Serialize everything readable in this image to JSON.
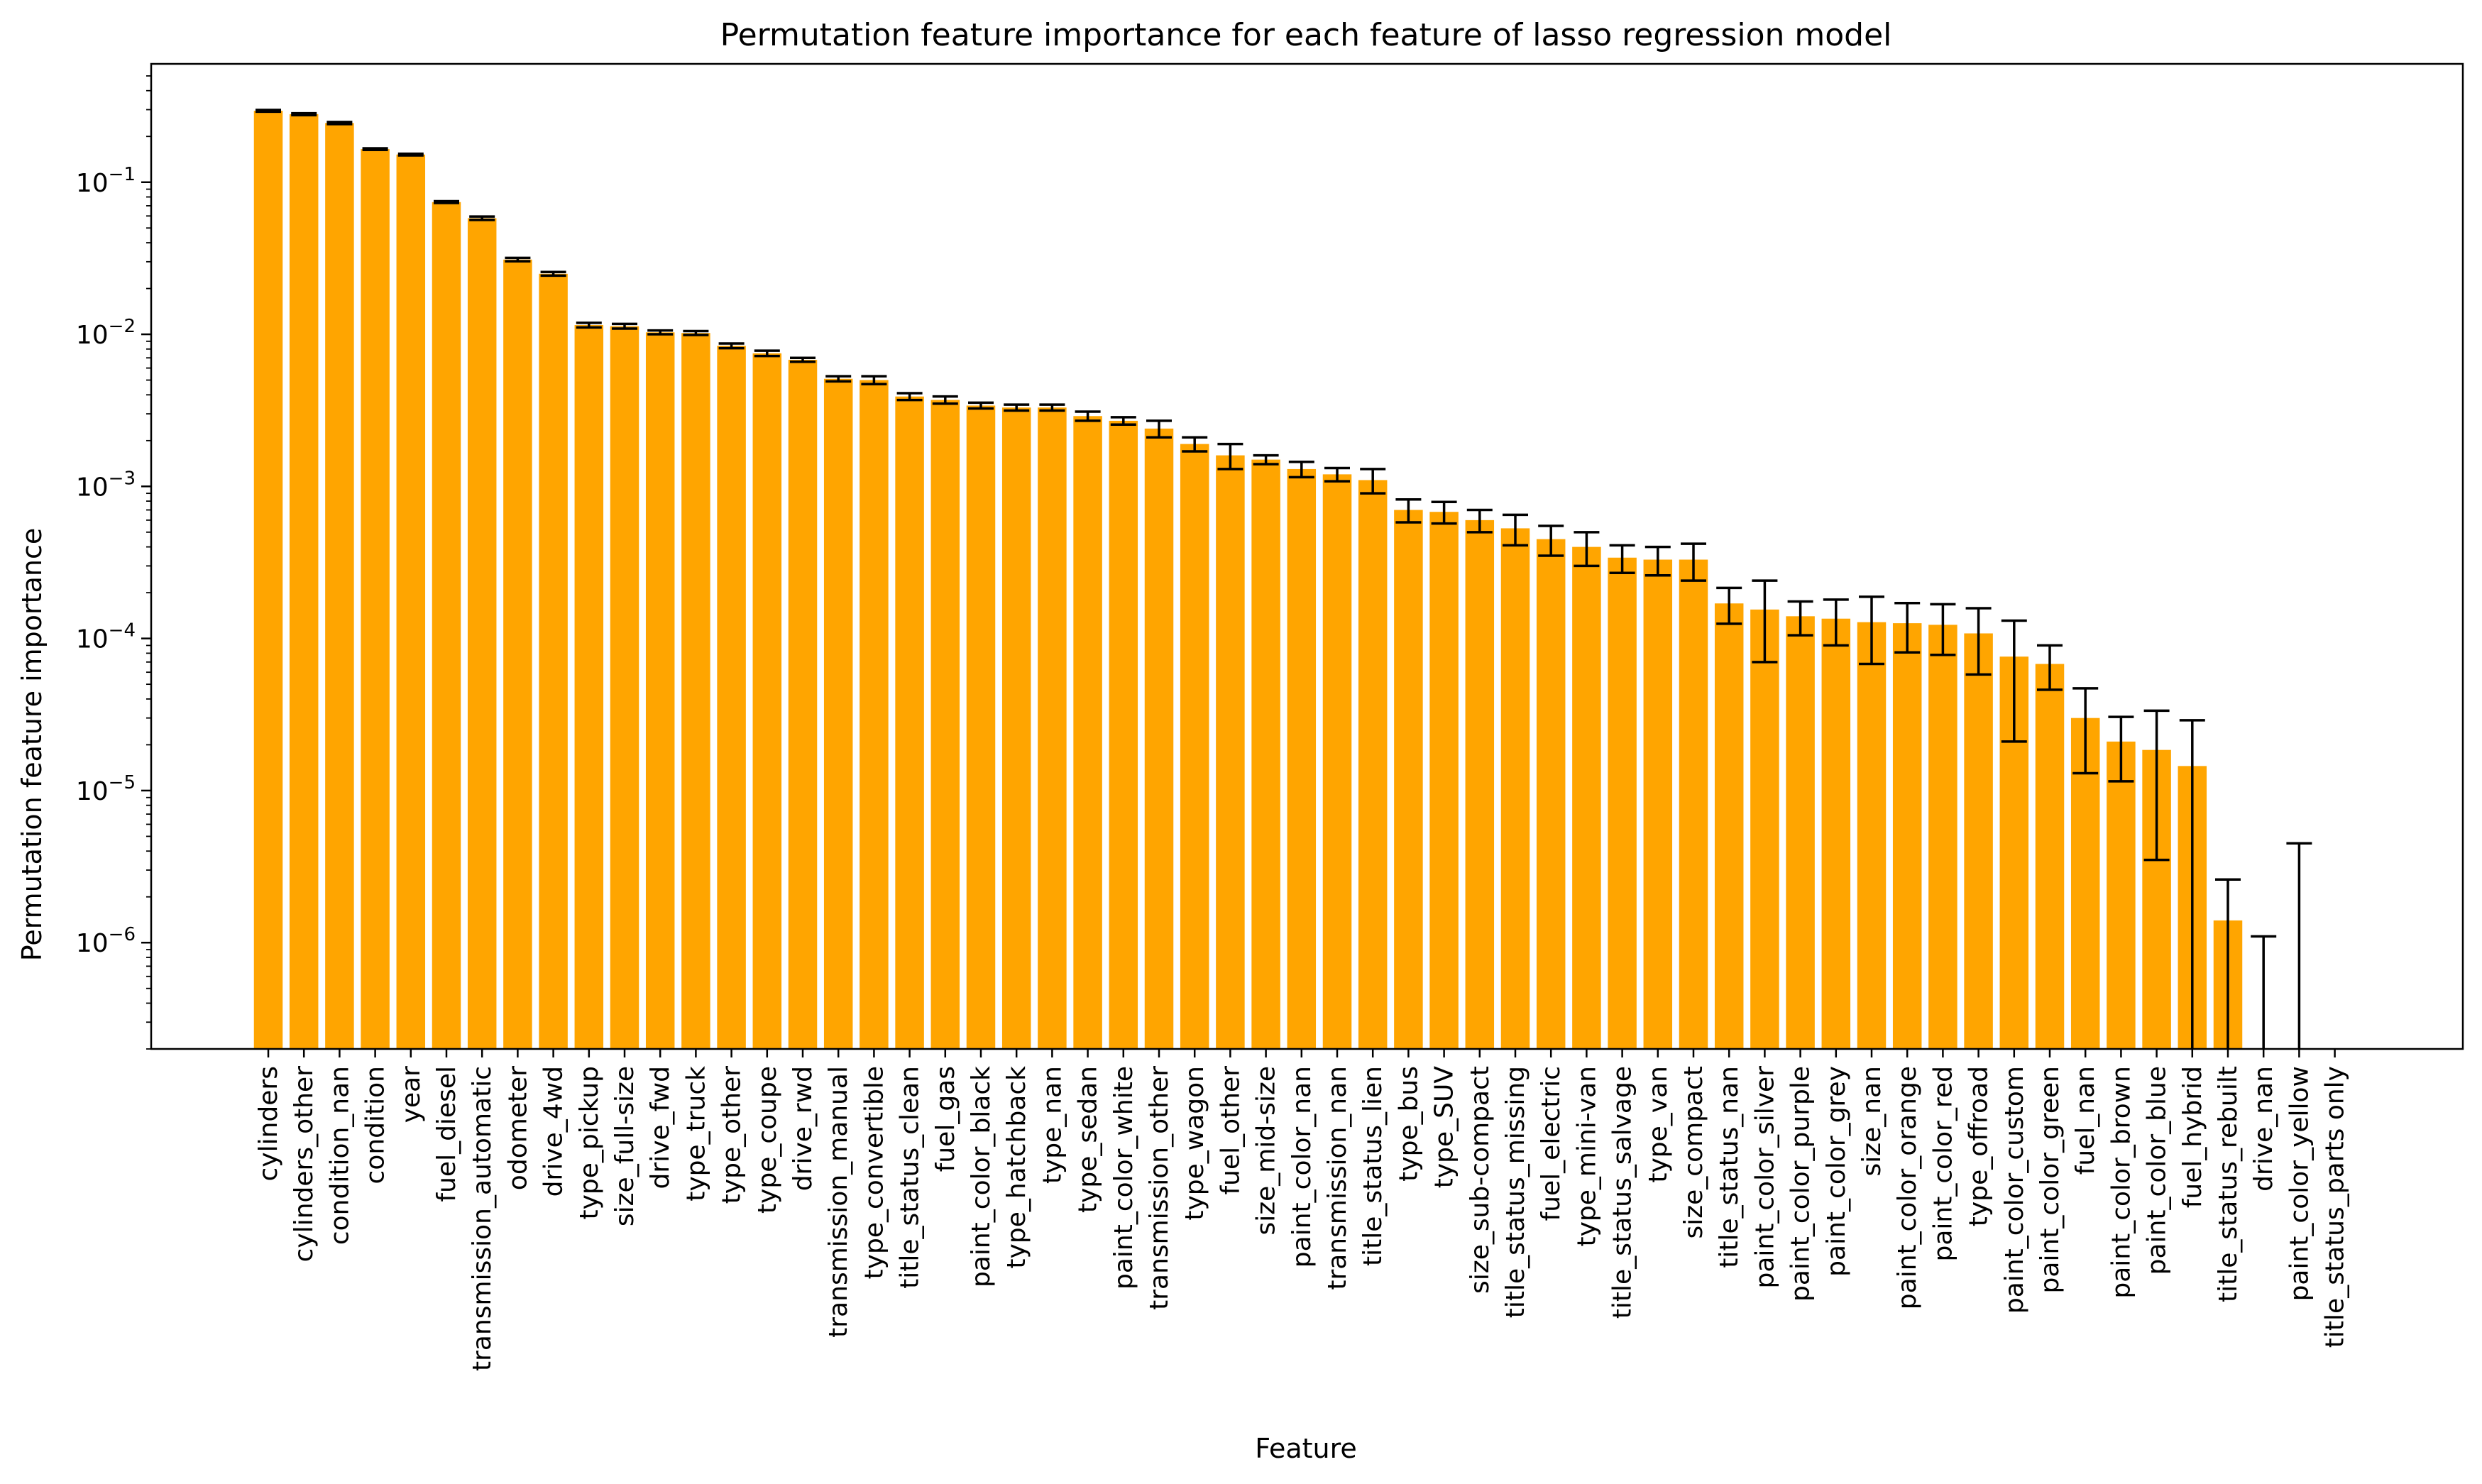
{
  "chart_data": {
    "type": "bar",
    "title": "Permutation feature importance for each feature of lasso regression model",
    "xlabel": "Feature",
    "ylabel": "Permutation feature importance",
    "yscale": "log",
    "ylim": [
      2e-07,
      0.6
    ],
    "y_ticks": [
      {
        "value": 1e-06,
        "base": "10",
        "exp": "−6"
      },
      {
        "value": 1e-05,
        "base": "10",
        "exp": "−5"
      },
      {
        "value": 0.0001,
        "base": "10",
        "exp": "−4"
      },
      {
        "value": 0.001,
        "base": "10",
        "exp": "−3"
      },
      {
        "value": 0.01,
        "base": "10",
        "exp": "−2"
      },
      {
        "value": 0.1,
        "base": "10",
        "exp": "−1"
      }
    ],
    "grid": false,
    "legend": "none",
    "colors": {
      "bar": "#FFA500",
      "error_bar": "#000000",
      "axes": "#000000"
    },
    "categories": [
      "cylinders",
      "cylinders_other",
      "condition_nan",
      "condition",
      "year",
      "fuel_diesel",
      "transmission_automatic",
      "odometer",
      "drive_4wd",
      "type_pickup",
      "size_full-size",
      "drive_fwd",
      "type_truck",
      "type_other",
      "type_coupe",
      "drive_rwd",
      "transmission_manual",
      "type_convertible",
      "title_status_clean",
      "fuel_gas",
      "paint_color_black",
      "type_hatchback",
      "type_nan",
      "type_sedan",
      "paint_color_white",
      "transmission_other",
      "type_wagon",
      "fuel_other",
      "size_mid-size",
      "paint_color_nan",
      "transmission_nan",
      "title_status_lien",
      "type_bus",
      "type_SUV",
      "size_sub-compact",
      "title_status_missing",
      "fuel_electric",
      "type_mini-van",
      "title_status_salvage",
      "type_van",
      "size_compact",
      "title_status_nan",
      "paint_color_silver",
      "paint_color_purple",
      "paint_color_grey",
      "size_nan",
      "paint_color_orange",
      "paint_color_red",
      "type_offroad",
      "paint_color_custom",
      "paint_color_green",
      "fuel_nan",
      "paint_color_brown",
      "paint_color_blue",
      "fuel_hybrid",
      "title_status_rebuilt",
      "drive_nan",
      "paint_color_yellow",
      "title_status_parts only"
    ],
    "values": [
      0.295,
      0.28,
      0.245,
      0.165,
      0.152,
      0.074,
      0.058,
      0.031,
      0.025,
      0.0115,
      0.0113,
      0.0103,
      0.0102,
      0.0084,
      0.0075,
      0.0068,
      0.0051,
      0.005,
      0.0039,
      0.0037,
      0.0034,
      0.0033,
      0.0033,
      0.0029,
      0.0027,
      0.0024,
      0.0019,
      0.0016,
      0.0015,
      0.0013,
      0.0012,
      0.0011,
      0.0007,
      0.00068,
      0.0006,
      0.00053,
      0.00045,
      0.0004,
      0.00034,
      0.00033,
      0.00033,
      0.00017,
      0.000155,
      0.00014,
      0.000135,
      0.000128,
      0.000126,
      0.000123,
      0.000108,
      7.6e-05,
      6.8e-05,
      3e-05,
      2.1e-05,
      1.85e-05,
      1.45e-05,
      1.4e-06,
      0,
      0,
      0
    ],
    "errors": [
      0.004,
      0.004,
      0.004,
      0.002,
      0.002,
      0.001,
      0.0015,
      0.0008,
      0.0007,
      0.0004,
      0.0004,
      0.0003,
      0.0003,
      0.0003,
      0.0003,
      0.0002,
      0.0002,
      0.0003,
      0.0002,
      0.0002,
      0.00015,
      0.00015,
      0.00015,
      0.0002,
      0.00015,
      0.0003,
      0.0002,
      0.0003,
      0.0001,
      0.00015,
      0.00012,
      0.0002,
      0.00012,
      0.00011,
      0.0001,
      0.00012,
      0.0001,
      0.0001,
      7e-05,
      7e-05,
      9e-05,
      4.5e-05,
      8.5e-05,
      3.5e-05,
      4.5e-05,
      6e-05,
      4.5e-05,
      4.5e-05,
      5e-05,
      5.5e-05,
      2.2e-05,
      1.7e-05,
      9.5e-06,
      1.5e-05,
      1.45e-05,
      1.2e-06,
      1.1e-06,
      4.5e-06,
      0
    ]
  }
}
